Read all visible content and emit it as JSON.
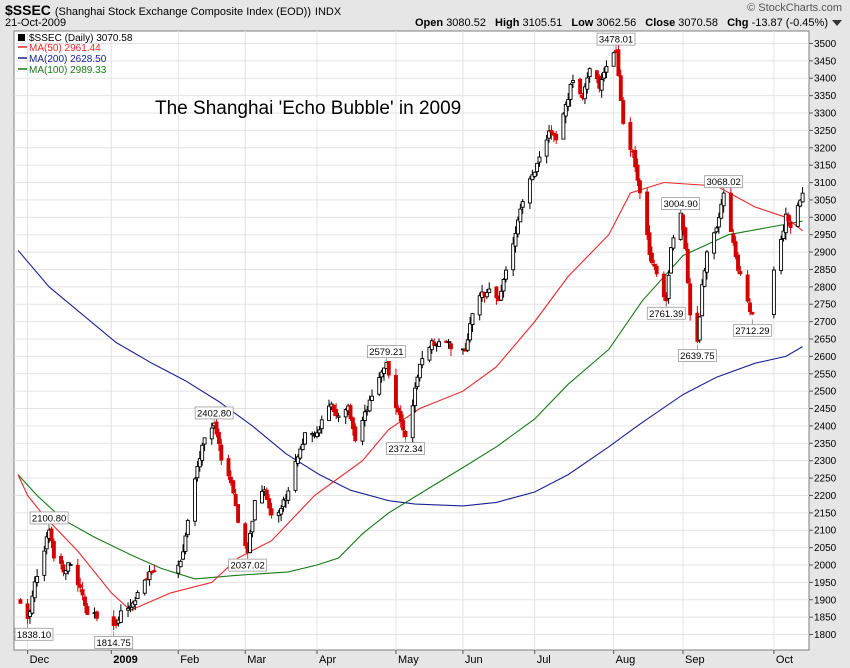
{
  "header": {
    "symbol": "$SSEC",
    "name": "(Shanghai Stock Exchange Composite Index (EOD))",
    "exchange": "INDX",
    "date": "21-Oct-2009",
    "brand": "© StockCharts.com",
    "open_label": "Open",
    "open": "3080.52",
    "high_label": "High",
    "high": "3105.51",
    "low_label": "Low",
    "low": "3062.56",
    "close_label": "Close",
    "close": "3070.58",
    "chg_label": "Chg",
    "chg": "-13.87 (-0.45%)"
  },
  "legend": {
    "main": "$SSEC (Daily) 3070.58",
    "ma50": "MA(50) 2961.44",
    "ma200": "MA(200) 2628.50",
    "ma100": "MA(100) 2989.33"
  },
  "colors": {
    "ma50": "#e8282a",
    "ma200": "#1a2395",
    "ma100": "#177a17",
    "up": "#000000",
    "down": "#d40000"
  },
  "chart_data": {
    "type": "candlestick",
    "title": "The Shanghai 'Echo Bubble' in 2009",
    "ylim": [
      1750,
      3550
    ],
    "y_ticks": [
      1800,
      1850,
      1900,
      1950,
      2000,
      2050,
      2100,
      2150,
      2200,
      2250,
      2300,
      2350,
      2400,
      2450,
      2500,
      2550,
      2600,
      2650,
      2700,
      2750,
      2800,
      2850,
      2900,
      2950,
      3000,
      3050,
      3100,
      3150,
      3200,
      3250,
      3300,
      3350,
      3400,
      3450,
      3500
    ],
    "x_ticks": [
      {
        "date": "2008-12-01",
        "label": "Dec",
        "bold": false
      },
      {
        "date": "2009-01-05",
        "label": "2009",
        "bold": true
      },
      {
        "date": "2009-02-02",
        "label": "Feb",
        "bold": false
      },
      {
        "date": "2009-03-02",
        "label": "Mar",
        "bold": false
      },
      {
        "date": "2009-04-01",
        "label": "Apr",
        "bold": false
      },
      {
        "date": "2009-05-04",
        "label": "May",
        "bold": false
      },
      {
        "date": "2009-06-01",
        "label": "Jun",
        "bold": false
      },
      {
        "date": "2009-07-01",
        "label": "Jul",
        "bold": false
      },
      {
        "date": "2009-08-03",
        "label": "Aug",
        "bold": false
      },
      {
        "date": "2009-09-01",
        "label": "Sep",
        "bold": false
      },
      {
        "date": "2009-10-09",
        "label": "Oct",
        "bold": false
      }
    ],
    "x_range": [
      "2008-11-27",
      "2009-10-22"
    ],
    "close_path": [
      [
        "2008-11-27",
        1900
      ],
      [
        "2008-12-01",
        1838
      ],
      [
        "2008-12-04",
        1950
      ],
      [
        "2008-12-08",
        2050
      ],
      [
        "2008-12-10",
        2100
      ],
      [
        "2008-12-12",
        2030
      ],
      [
        "2008-12-16",
        1990
      ],
      [
        "2008-12-19",
        2000
      ],
      [
        "2008-12-23",
        1930
      ],
      [
        "2008-12-26",
        1860
      ],
      [
        "2008-12-30",
        1850
      ],
      [
        "2009-01-06",
        1815
      ],
      [
        "2009-01-09",
        1870
      ],
      [
        "2009-01-13",
        1880
      ],
      [
        "2009-01-16",
        1920
      ],
      [
        "2009-01-20",
        1960
      ],
      [
        "2009-01-23",
        1990
      ],
      [
        "2009-02-03",
        2010
      ],
      [
        "2009-02-06",
        2120
      ],
      [
        "2009-02-10",
        2280
      ],
      [
        "2009-02-13",
        2370
      ],
      [
        "2009-02-17",
        2402
      ],
      [
        "2009-02-20",
        2310
      ],
      [
        "2009-02-24",
        2240
      ],
      [
        "2009-02-27",
        2120
      ],
      [
        "2009-03-03",
        2037
      ],
      [
        "2009-03-06",
        2180
      ],
      [
        "2009-03-10",
        2210
      ],
      [
        "2009-03-13",
        2150
      ],
      [
        "2009-03-17",
        2160
      ],
      [
        "2009-03-20",
        2220
      ],
      [
        "2009-03-24",
        2320
      ],
      [
        "2009-03-27",
        2370
      ],
      [
        "2009-03-31",
        2370
      ],
      [
        "2009-04-03",
        2410
      ],
      [
        "2009-04-07",
        2460
      ],
      [
        "2009-04-10",
        2420
      ],
      [
        "2009-04-14",
        2450
      ],
      [
        "2009-04-17",
        2350
      ],
      [
        "2009-04-21",
        2430
      ],
      [
        "2009-04-24",
        2480
      ],
      [
        "2009-04-28",
        2560
      ],
      [
        "2009-04-30",
        2579
      ],
      [
        "2009-05-05",
        2430
      ],
      [
        "2009-05-08",
        2372
      ],
      [
        "2009-05-12",
        2500
      ],
      [
        "2009-05-15",
        2600
      ],
      [
        "2009-05-19",
        2640
      ],
      [
        "2009-05-22",
        2640
      ],
      [
        "2009-05-26",
        2650
      ],
      [
        "2009-05-29",
        2590
      ],
      [
        "2009-06-02",
        2620
      ],
      [
        "2009-06-05",
        2720
      ],
      [
        "2009-06-09",
        2780
      ],
      [
        "2009-06-12",
        2800
      ],
      [
        "2009-06-16",
        2760
      ],
      [
        "2009-06-19",
        2850
      ],
      [
        "2009-06-23",
        2950
      ],
      [
        "2009-06-26",
        3050
      ],
      [
        "2009-06-30",
        3120
      ],
      [
        "2009-07-03",
        3170
      ],
      [
        "2009-07-07",
        3250
      ],
      [
        "2009-07-10",
        3220
      ],
      [
        "2009-07-14",
        3320
      ],
      [
        "2009-07-17",
        3400
      ],
      [
        "2009-07-21",
        3350
      ],
      [
        "2009-07-24",
        3420
      ],
      [
        "2009-07-28",
        3380
      ],
      [
        "2009-07-31",
        3440
      ],
      [
        "2009-08-04",
        3478
      ],
      [
        "2009-08-07",
        3260
      ],
      [
        "2009-08-11",
        3180
      ],
      [
        "2009-08-14",
        3070
      ],
      [
        "2009-08-18",
        2900
      ],
      [
        "2009-08-21",
        2840
      ],
      [
        "2009-08-25",
        2761
      ],
      [
        "2009-08-27",
        2920
      ],
      [
        "2009-08-31",
        3004
      ],
      [
        "2009-09-02",
        2920
      ],
      [
        "2009-09-04",
        2720
      ],
      [
        "2009-09-07",
        2639
      ],
      [
        "2009-09-09",
        2800
      ],
      [
        "2009-09-11",
        2900
      ],
      [
        "2009-09-15",
        2980
      ],
      [
        "2009-09-18",
        3068
      ],
      [
        "2009-09-22",
        2930
      ],
      [
        "2009-09-24",
        2850
      ],
      [
        "2009-09-28",
        2760
      ],
      [
        "2009-09-30",
        2712
      ],
      [
        "2009-10-02",
        2780
      ],
      [
        "2009-10-09",
        2850
      ],
      [
        "2009-10-12",
        2930
      ],
      [
        "2009-10-14",
        3000
      ],
      [
        "2009-10-16",
        2970
      ],
      [
        "2009-10-19",
        3030
      ],
      [
        "2009-10-21",
        3070
      ]
    ],
    "ma50": [
      [
        "2008-11-27",
        2260
      ],
      [
        "2008-12-01",
        2200
      ],
      [
        "2008-12-08",
        2140
      ],
      [
        "2008-12-22",
        2040
      ],
      [
        "2009-01-05",
        1920
      ],
      [
        "2009-01-13",
        1870
      ],
      [
        "2009-01-30",
        1920
      ],
      [
        "2009-02-16",
        1950
      ],
      [
        "2009-02-27",
        2020
      ],
      [
        "2009-03-13",
        2070
      ],
      [
        "2009-03-31",
        2200
      ],
      [
        "2009-04-20",
        2300
      ],
      [
        "2009-05-01",
        2390
      ],
      [
        "2009-05-14",
        2450
      ],
      [
        "2009-06-01",
        2500
      ],
      [
        "2009-06-15",
        2570
      ],
      [
        "2009-07-01",
        2700
      ],
      [
        "2009-07-15",
        2830
      ],
      [
        "2009-08-01",
        2950
      ],
      [
        "2009-08-10",
        3070
      ],
      [
        "2009-08-24",
        3100
      ],
      [
        "2009-09-15",
        3090
      ],
      [
        "2009-10-01",
        3030
      ],
      [
        "2009-10-14",
        3000
      ],
      [
        "2009-10-21",
        2961
      ]
    ],
    "ma100": [
      [
        "2008-11-27",
        2260
      ],
      [
        "2008-12-05",
        2200
      ],
      [
        "2008-12-16",
        2130
      ],
      [
        "2008-12-29",
        2080
      ],
      [
        "2009-01-13",
        2030
      ],
      [
        "2009-01-26",
        1990
      ],
      [
        "2009-02-09",
        1960
      ],
      [
        "2009-02-26",
        1970
      ],
      [
        "2009-03-20",
        1980
      ],
      [
        "2009-04-01",
        2000
      ],
      [
        "2009-04-10",
        2020
      ],
      [
        "2009-04-20",
        2090
      ],
      [
        "2009-05-01",
        2150
      ],
      [
        "2009-05-20",
        2230
      ],
      [
        "2009-06-01",
        2280
      ],
      [
        "2009-06-15",
        2340
      ],
      [
        "2009-07-01",
        2420
      ],
      [
        "2009-07-15",
        2520
      ],
      [
        "2009-08-01",
        2620
      ],
      [
        "2009-08-15",
        2760
      ],
      [
        "2009-09-01",
        2890
      ],
      [
        "2009-09-20",
        2950
      ],
      [
        "2009-10-10",
        2975
      ],
      [
        "2009-10-21",
        2989
      ]
    ],
    "ma200": [
      [
        "2008-11-27",
        2905
      ],
      [
        "2008-12-10",
        2800
      ],
      [
        "2008-12-24",
        2720
      ],
      [
        "2009-01-07",
        2640
      ],
      [
        "2009-01-22",
        2580
      ],
      [
        "2009-02-05",
        2530
      ],
      [
        "2009-02-19",
        2470
      ],
      [
        "2009-03-05",
        2400
      ],
      [
        "2009-03-19",
        2320
      ],
      [
        "2009-04-02",
        2260
      ],
      [
        "2009-04-15",
        2215
      ],
      [
        "2009-05-01",
        2185
      ],
      [
        "2009-05-12",
        2175
      ],
      [
        "2009-06-01",
        2170
      ],
      [
        "2009-06-15",
        2180
      ],
      [
        "2009-07-01",
        2210
      ],
      [
        "2009-07-15",
        2260
      ],
      [
        "2009-08-01",
        2340
      ],
      [
        "2009-08-15",
        2410
      ],
      [
        "2009-09-01",
        2490
      ],
      [
        "2009-09-15",
        2540
      ],
      [
        "2009-10-01",
        2580
      ],
      [
        "2009-10-14",
        2600
      ],
      [
        "2009-10-21",
        2628
      ]
    ],
    "annotations": [
      {
        "date": "2008-12-01",
        "value": 1838.1,
        "label": "1838.10",
        "side": "below"
      },
      {
        "date": "2008-12-10",
        "value": 2100.8,
        "label": "2100.80",
        "side": "above"
      },
      {
        "date": "2009-01-06",
        "value": 1814.75,
        "label": "1814.75",
        "side": "below"
      },
      {
        "date": "2009-02-17",
        "value": 2402.8,
        "label": "2402.80",
        "side": "above"
      },
      {
        "date": "2009-03-03",
        "value": 2037.02,
        "label": "2037.02",
        "side": "below"
      },
      {
        "date": "2009-04-30",
        "value": 2579.21,
        "label": "2579.21",
        "side": "above"
      },
      {
        "date": "2009-05-08",
        "value": 2372.34,
        "label": "2372.34",
        "side": "below"
      },
      {
        "date": "2009-08-04",
        "value": 3478.01,
        "label": "3478.01",
        "side": "above"
      },
      {
        "date": "2009-08-25",
        "value": 2761.39,
        "label": "2761.39",
        "side": "below"
      },
      {
        "date": "2009-08-31",
        "value": 3004.9,
        "label": "3004.90",
        "side": "above"
      },
      {
        "date": "2009-09-07",
        "value": 2639.75,
        "label": "2639.75",
        "side": "below"
      },
      {
        "date": "2009-09-18",
        "value": 3068.02,
        "label": "3068.02",
        "side": "above"
      },
      {
        "date": "2009-09-30",
        "value": 2712.29,
        "label": "2712.29",
        "side": "below"
      }
    ],
    "legend_position": "top-left",
    "grid": true
  }
}
